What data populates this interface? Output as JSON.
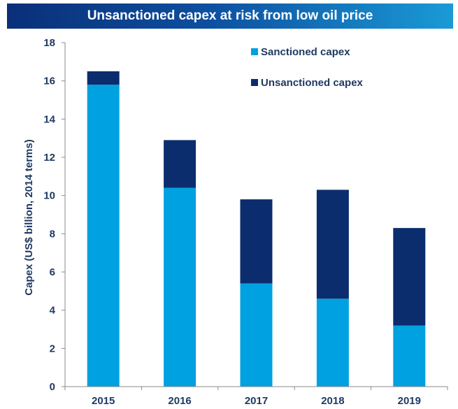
{
  "colors": {
    "sanctioned": "#00a1e0",
    "unsanctioned": "#0b2d6e",
    "axis": "#1f3a63"
  },
  "chart_data": {
    "type": "bar",
    "stacked": true,
    "title": "Unsanctioned capex at risk from low oil price",
    "xlabel": "",
    "ylabel": "Capex (US$ billion,  2014  terms)",
    "categories": [
      "2015",
      "2016",
      "2017",
      "2018",
      "2019"
    ],
    "series": [
      {
        "name": "Sanctioned capex",
        "values": [
          15.8,
          10.4,
          5.4,
          4.6,
          3.2
        ]
      },
      {
        "name": "Unsanctioned capex",
        "values": [
          0.7,
          2.5,
          4.4,
          5.7,
          5.1
        ]
      }
    ],
    "ylim": [
      0,
      18
    ],
    "yticks": [
      "0",
      "2",
      "4",
      "6",
      "8",
      "10",
      "12",
      "14",
      "16",
      "18"
    ],
    "grid": false,
    "legend_position": "top-right"
  }
}
